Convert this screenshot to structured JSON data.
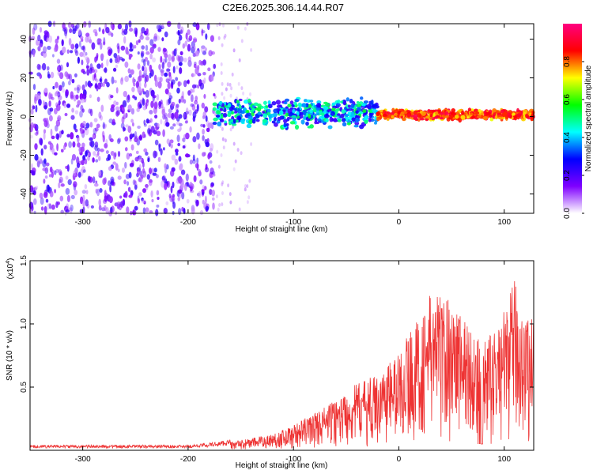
{
  "title": "C2E6.2025.306.14.44.R07",
  "chart_data": [
    {
      "type": "heatmap",
      "xlabel": "Height of straight line (km)",
      "ylabel": "Frequency (Hz)",
      "xlim": [
        -350,
        128
      ],
      "ylim": [
        -50,
        48
      ],
      "x_ticks": [
        -300,
        -200,
        -100,
        0,
        100
      ],
      "x_tick_labels": [
        "-300",
        "-200",
        "-100",
        "0",
        "100"
      ],
      "y_ticks": [
        -40,
        -20,
        0,
        20,
        40
      ],
      "y_tick_labels": [
        "-40",
        "-20",
        "0",
        "20",
        "40"
      ],
      "colorbar": {
        "label": "Normalized spectral amplitude",
        "range": [
          0,
          1
        ],
        "ticks": [
          0.0,
          0.2,
          0.4,
          0.6,
          0.8
        ],
        "tick_labels": [
          "0.0",
          "0.2",
          "0.4",
          "0.6",
          "0.8"
        ],
        "colormap": [
          "#ffffff",
          "#7f00ff",
          "#0000ff",
          "#00ffff",
          "#00ff00",
          "#ffff00",
          "#ff0000",
          "#ff0080"
        ]
      },
      "regions": [
        {
          "x_range": [
            -350,
            -175
          ],
          "freq_range": [
            -50,
            48
          ],
          "amplitude": [
            0.05,
            0.25
          ],
          "pattern": "broadband noise"
        },
        {
          "x_range": [
            -175,
            -140
          ],
          "freq_range": [
            -50,
            48
          ],
          "amplitude": [
            0.0,
            0.1
          ],
          "pattern": "sparse noise"
        },
        {
          "x_range": [
            -175,
            -20
          ],
          "freq_center": 2,
          "freq_halfwidth": 8,
          "amplitude": [
            0.2,
            0.55
          ]
        },
        {
          "x_range": [
            -20,
            128
          ],
          "freq_center": 1,
          "freq_halfwidth": 3,
          "amplitude": [
            0.7,
            0.95
          ]
        }
      ],
      "grid": false,
      "legend": "colorbar right"
    },
    {
      "type": "line",
      "xlabel": "Height of straight line (km)",
      "ylabel": "SNR (10 * v/v)",
      "y_scale_label": "(x10",
      "y_scale_exponent": "4",
      "xlim": [
        -350,
        128
      ],
      "ylim": [
        0,
        15000
      ],
      "x_ticks": [
        -300,
        -200,
        -100,
        0,
        100
      ],
      "x_tick_labels": [
        "-300",
        "-200",
        "-100",
        "0",
        "100"
      ],
      "y_ticks": [
        5000,
        10000,
        15000
      ],
      "y_tick_labels": [
        "0.5",
        "1.0",
        "1.5"
      ],
      "color": "#ee3333",
      "envelope": {
        "x": [
          -350,
          -300,
          -200,
          -170,
          -150,
          -120,
          -100,
          -80,
          -60,
          -40,
          -20,
          -10,
          0,
          10,
          20,
          30,
          40,
          50,
          60,
          70,
          80,
          90,
          100,
          110,
          120,
          128
        ],
        "y": [
          300,
          300,
          300,
          500,
          800,
          1300,
          2000,
          3000,
          4000,
          5300,
          6000,
          7000,
          7800,
          9500,
          10500,
          12500,
          12500,
          12000,
          11000,
          9500,
          8800,
          9200,
          11000,
          13500,
          10500,
          11000
        ]
      },
      "grid": false
    }
  ]
}
